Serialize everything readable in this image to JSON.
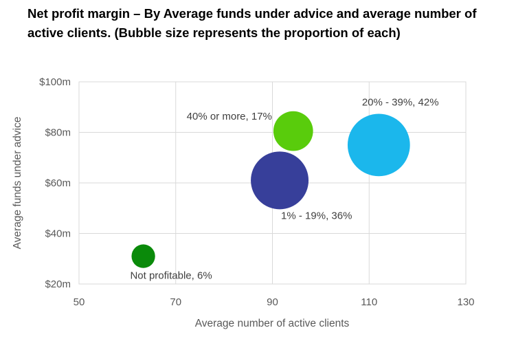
{
  "chart_data": {
    "type": "scatter",
    "title": "Net profit margin – By Average funds under advice and average number of active clients. (Bubble size represents the proportion of each)",
    "xlabel": "Average number of active clients",
    "ylabel": "Average funds under advice",
    "xlim": [
      50,
      130
    ],
    "ylim": [
      20,
      100
    ],
    "x_ticks": [
      "50",
      "70",
      "90",
      "110",
      "130"
    ],
    "y_ticks": [
      "$20m",
      "$40m",
      "$60m",
      "$80m",
      "$100m"
    ],
    "grid": true,
    "series": [
      {
        "label": "Not profitable, 6%",
        "x": 63.3,
        "y": 31,
        "size": 6,
        "color": "#0a8a0a",
        "label_pos": "below"
      },
      {
        "label": "1% - 19%, 36%",
        "x": 91.5,
        "y": 61,
        "size": 36,
        "color": "#373f9a",
        "label_pos": "below-right"
      },
      {
        "label": "40% or more, 17%",
        "x": 94.3,
        "y": 80.5,
        "size": 17,
        "color": "#59cc0c",
        "label_pos": "left"
      },
      {
        "label": "20% - 39%, 42%",
        "x": 112,
        "y": 75,
        "size": 42,
        "color": "#1bb7ec",
        "label_pos": "above"
      }
    ]
  }
}
